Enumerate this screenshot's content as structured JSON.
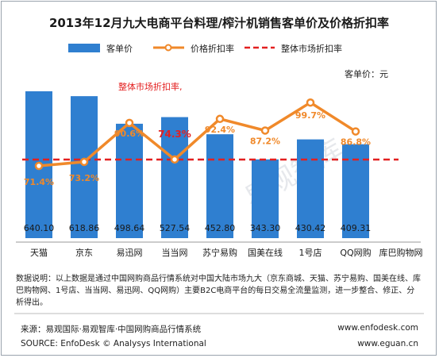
{
  "chart_data": {
    "type": "bar",
    "title": "2013年12月九大电商平台料理/榨汁机销售客单价及价格折扣率",
    "unit_label": "客单价：元",
    "categories": [
      "天猫",
      "京东",
      "易迅网",
      "当当网",
      "苏宁易购",
      "国美在线",
      "1号店",
      "QQ网购",
      "库巴购物网"
    ],
    "series": [
      {
        "name": "客单价",
        "kind": "bar",
        "color": "#2f7fd0",
        "values": [
          640.1,
          618.86,
          498.64,
          527.54,
          452.8,
          343.3,
          430.42,
          409.31,
          null
        ],
        "labels": [
          "640.10",
          "618.86",
          "498.64",
          "527.54",
          "452.80",
          "343.30",
          "430.42",
          "409.31",
          ""
        ]
      },
      {
        "name": "价格折扣率",
        "kind": "line",
        "color": "#f0892a",
        "values": [
          71.4,
          73.2,
          90.6,
          74.3,
          92.4,
          87.2,
          99.7,
          86.8,
          null
        ],
        "labels": [
          "71.4%",
          "73.2%",
          "90.6%",
          "74.3%",
          "92.4%",
          "87.2%",
          "99.7%",
          "86.8%",
          ""
        ]
      },
      {
        "name": "整体市场折扣率",
        "kind": "reference-line",
        "color": "#e32020"
      }
    ],
    "annotation": "整体市场折扣率,",
    "watermark": "易观智库",
    "legend_position": "top",
    "grid": false
  },
  "notes": {
    "description": "数据说明：以上数据是通过中国网购商品行情系统对中国大陆市场九大（京东商城、天猫、苏宁易购、国美在线、库巴购物网、1号店、当当网、易迅网、QQ网购）主要B2C电商平台的每日交易全流量监测，进一步整合、修正、分析得出。"
  },
  "footer": {
    "source_cn": "来源：易观国际·易观智库·中国网购商品行情系统",
    "source_en": "SOURCE: EnfoDesk © Analysys International",
    "url1": "www.enfodesk.com",
    "url2": "www.eguan.cn"
  }
}
